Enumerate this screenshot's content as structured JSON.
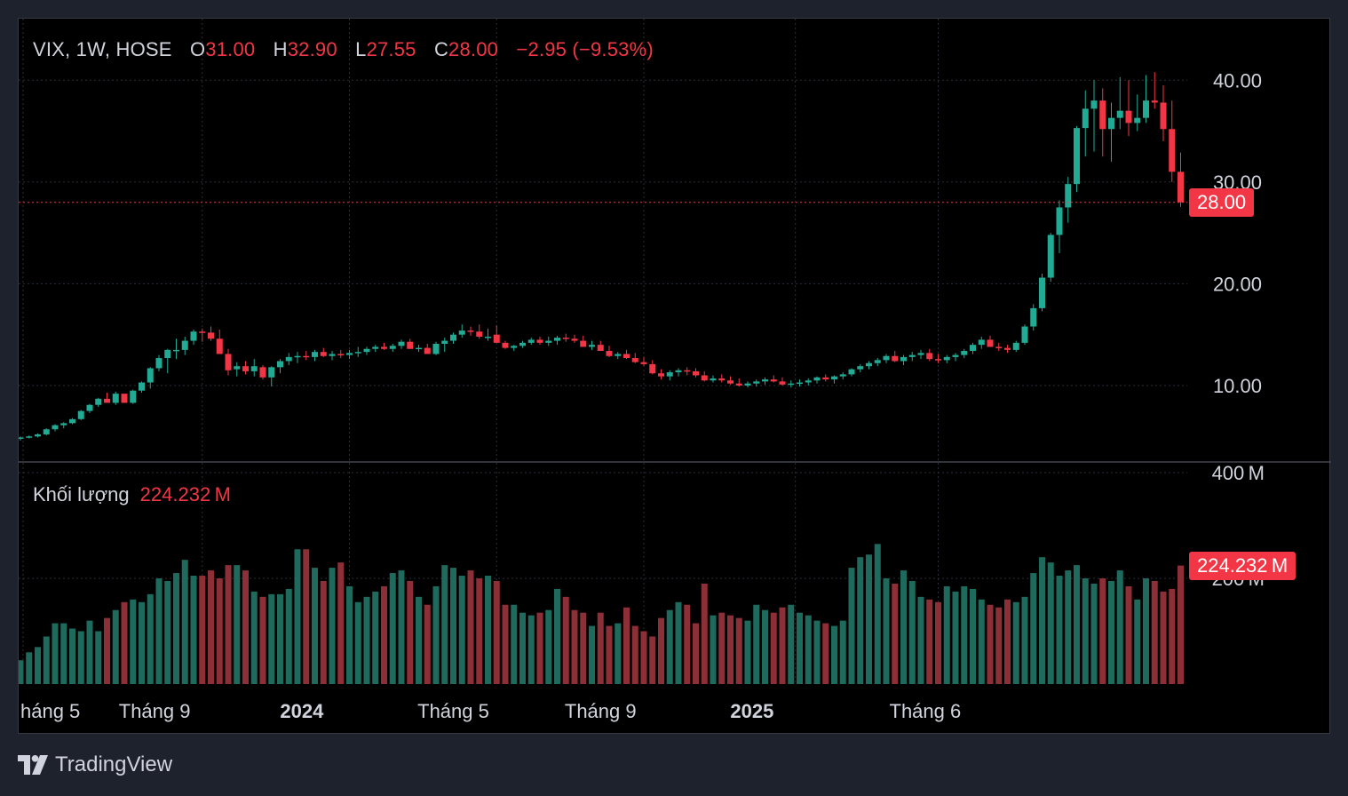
{
  "legend": {
    "symbol": "VIX, 1W, HOSE",
    "o_label": "O",
    "o_value": "31.00",
    "h_label": "H",
    "h_value": "32.90",
    "l_label": "L",
    "l_value": "27.55",
    "c_label": "C",
    "c_value": "28.00",
    "change": "−2.95 (−9.53%)"
  },
  "volume_legend": {
    "label": "Khối lượng",
    "value": "224.232 M"
  },
  "price_tag": "28.00",
  "volume_tag": "224.232 M",
  "brand": "TradingView",
  "colors": {
    "up": "#22ab94",
    "down": "#f23645",
    "vol_up": "#1e6a5c",
    "vol_down": "#8c2f36",
    "grid": "#2a2e39",
    "text": "#d1d4dc"
  },
  "chart_data": {
    "type": "candlestick",
    "symbol": "VIX",
    "interval": "1W",
    "exchange": "HOSE",
    "price_axis": {
      "ticks": [
        10,
        20,
        30,
        40
      ],
      "tick_labels": [
        "10.00",
        "20.00",
        "30.00",
        "40.00"
      ],
      "range": [
        3.8,
        45
      ]
    },
    "volume_axis": {
      "ticks": [
        200,
        400
      ],
      "tick_labels": [
        "200 M",
        "400 M"
      ],
      "range": [
        0,
        420
      ],
      "unit": "M"
    },
    "x_axis": {
      "labels": [
        {
          "text": "háng 5",
          "bold": false,
          "index": 0
        },
        {
          "text": "Tháng 9",
          "bold": false,
          "index": 15.5
        },
        {
          "text": "2024",
          "bold": true,
          "index": 32.5
        },
        {
          "text": "Tháng 5",
          "bold": false,
          "index": 50
        },
        {
          "text": "Tháng 9",
          "bold": false,
          "index": 67
        },
        {
          "text": "2025",
          "bold": true,
          "index": 84.5
        },
        {
          "text": "Tháng 6",
          "bold": false,
          "index": 104.5
        }
      ],
      "grid_indices": [
        0.3,
        21,
        38,
        55,
        72,
        89.5,
        106
      ]
    },
    "last_price": 28.0,
    "last_volume": 224.232,
    "candles": [
      [
        4.8,
        5.0,
        4.6,
        4.9,
        45
      ],
      [
        4.9,
        5.1,
        4.8,
        5.0,
        60
      ],
      [
        5.0,
        5.3,
        4.9,
        5.2,
        70
      ],
      [
        5.2,
        5.8,
        5.1,
        5.7,
        90
      ],
      [
        5.7,
        6.2,
        5.5,
        6.1,
        115
      ],
      [
        6.1,
        6.4,
        5.8,
        6.3,
        115
      ],
      [
        6.3,
        6.8,
        6.2,
        6.7,
        105
      ],
      [
        6.7,
        7.6,
        6.6,
        7.5,
        100
      ],
      [
        7.5,
        8.2,
        7.3,
        8.1,
        120
      ],
      [
        8.1,
        8.8,
        7.9,
        8.7,
        100
      ],
      [
        8.7,
        9.3,
        8.3,
        8.3,
        125
      ],
      [
        8.3,
        9.4,
        8.1,
        9.2,
        140
      ],
      [
        9.2,
        9.0,
        8.3,
        8.3,
        155
      ],
      [
        8.3,
        9.6,
        8.2,
        9.5,
        160
      ],
      [
        9.5,
        10.4,
        9.3,
        10.3,
        155
      ],
      [
        10.3,
        11.8,
        9.7,
        11.7,
        170
      ],
      [
        11.7,
        13.0,
        11.4,
        12.7,
        200
      ],
      [
        12.7,
        13.6,
        11.2,
        13.5,
        195
      ],
      [
        13.5,
        14.6,
        12.6,
        13.5,
        210
      ],
      [
        13.5,
        14.8,
        13.0,
        14.4,
        235
      ],
      [
        14.4,
        15.5,
        14.0,
        15.3,
        205
      ],
      [
        15.3,
        15.6,
        14.3,
        15.2,
        205
      ],
      [
        15.2,
        15.8,
        14.4,
        14.6,
        215
      ],
      [
        14.6,
        15.5,
        13.1,
        13.1,
        200
      ],
      [
        13.1,
        13.6,
        11.0,
        11.5,
        225
      ],
      [
        11.6,
        12.3,
        10.9,
        11.9,
        225
      ],
      [
        11.9,
        12.4,
        11.1,
        11.4,
        215
      ],
      [
        11.4,
        12.6,
        10.9,
        11.9,
        175
      ],
      [
        11.8,
        12.0,
        10.6,
        10.8,
        165
      ],
      [
        10.8,
        11.9,
        9.9,
        11.8,
        170
      ],
      [
        11.8,
        12.6,
        11.2,
        12.4,
        170
      ],
      [
        12.4,
        13.2,
        12.0,
        12.8,
        180
      ],
      [
        12.8,
        13.3,
        12.2,
        12.9,
        255
      ],
      [
        12.9,
        13.4,
        12.5,
        12.8,
        255
      ],
      [
        12.8,
        13.5,
        12.4,
        13.3,
        220
      ],
      [
        13.3,
        13.7,
        12.8,
        12.9,
        195
      ],
      [
        12.9,
        13.4,
        12.5,
        13.1,
        220
      ],
      [
        13.1,
        13.5,
        12.7,
        13.0,
        230
      ],
      [
        13.0,
        13.5,
        12.6,
        13.2,
        185
      ],
      [
        13.2,
        13.8,
        12.8,
        13.3,
        155
      ],
      [
        13.3,
        13.8,
        13.0,
        13.6,
        165
      ],
      [
        13.6,
        14.0,
        13.3,
        13.8,
        175
      ],
      [
        13.8,
        14.2,
        13.5,
        13.6,
        185
      ],
      [
        13.6,
        14.1,
        13.3,
        13.9,
        210
      ],
      [
        13.9,
        14.5,
        13.6,
        14.3,
        215
      ],
      [
        14.3,
        14.6,
        13.6,
        13.6,
        195
      ],
      [
        13.6,
        14.0,
        13.3,
        13.7,
        165
      ],
      [
        13.7,
        14.1,
        13.1,
        13.1,
        150
      ],
      [
        13.1,
        14.3,
        13.0,
        14.1,
        185
      ],
      [
        14.1,
        14.7,
        13.3,
        14.4,
        225
      ],
      [
        14.4,
        15.2,
        14.1,
        15.0,
        220
      ],
      [
        15.0,
        16.0,
        14.7,
        15.4,
        205
      ],
      [
        15.4,
        15.8,
        14.9,
        15.3,
        215
      ],
      [
        15.3,
        16.0,
        14.6,
        14.8,
        200
      ],
      [
        14.8,
        15.6,
        14.4,
        14.8,
        205
      ],
      [
        15.0,
        15.9,
        14.2,
        14.2,
        195
      ],
      [
        14.2,
        14.4,
        13.6,
        13.7,
        150
      ],
      [
        13.7,
        14.0,
        13.4,
        13.9,
        150
      ],
      [
        13.9,
        14.4,
        13.7,
        14.2,
        135
      ],
      [
        14.2,
        14.7,
        14.0,
        14.5,
        130
      ],
      [
        14.5,
        14.8,
        14.0,
        14.2,
        135
      ],
      [
        14.2,
        14.8,
        13.9,
        14.4,
        140
      ],
      [
        14.4,
        14.9,
        14.0,
        14.7,
        180
      ],
      [
        14.7,
        15.1,
        14.3,
        14.6,
        165
      ],
      [
        14.6,
        15.0,
        14.2,
        14.4,
        140
      ],
      [
        14.4,
        14.9,
        13.8,
        13.8,
        135
      ],
      [
        13.8,
        14.4,
        13.5,
        14.0,
        110
      ],
      [
        14.0,
        14.4,
        13.4,
        13.4,
        135
      ],
      [
        13.4,
        13.9,
        12.8,
        12.9,
        110
      ],
      [
        12.9,
        13.3,
        12.6,
        13.1,
        115
      ],
      [
        13.1,
        13.5,
        12.6,
        12.7,
        145
      ],
      [
        12.7,
        13.2,
        12.2,
        12.3,
        110
      ],
      [
        12.3,
        12.8,
        11.9,
        12.1,
        100
      ],
      [
        12.1,
        12.5,
        11.1,
        11.2,
        90
      ],
      [
        11.2,
        11.6,
        10.6,
        10.9,
        125
      ],
      [
        10.9,
        11.5,
        10.5,
        11.3,
        140
      ],
      [
        11.3,
        11.7,
        10.9,
        11.5,
        155
      ],
      [
        11.5,
        11.8,
        11.0,
        11.4,
        150
      ],
      [
        11.4,
        11.7,
        10.8,
        11.0,
        115
      ],
      [
        11.0,
        11.4,
        10.4,
        10.5,
        190
      ],
      [
        10.5,
        11.0,
        10.3,
        10.7,
        130
      ],
      [
        10.7,
        11.1,
        10.3,
        10.5,
        135
      ],
      [
        10.5,
        10.9,
        10.1,
        10.2,
        130
      ],
      [
        10.2,
        10.7,
        9.9,
        10.0,
        125
      ],
      [
        10.0,
        10.4,
        9.8,
        10.2,
        120
      ],
      [
        10.2,
        10.6,
        9.9,
        10.4,
        150
      ],
      [
        10.4,
        10.8,
        10.1,
        10.6,
        140
      ],
      [
        10.6,
        11.0,
        10.3,
        10.4,
        135
      ],
      [
        10.4,
        10.8,
        10.0,
        10.1,
        145
      ],
      [
        10.1,
        10.5,
        9.8,
        10.2,
        150
      ],
      [
        10.2,
        10.6,
        9.9,
        10.3,
        135
      ],
      [
        10.3,
        10.7,
        10.0,
        10.5,
        130
      ],
      [
        10.5,
        10.9,
        10.2,
        10.8,
        120
      ],
      [
        10.8,
        11.1,
        10.4,
        10.6,
        115
      ],
      [
        10.6,
        11.0,
        10.2,
        10.9,
        110
      ],
      [
        10.9,
        11.3,
        10.6,
        11.1,
        120
      ],
      [
        11.1,
        11.7,
        10.9,
        11.6,
        220
      ],
      [
        11.6,
        12.1,
        11.3,
        11.9,
        240
      ],
      [
        11.9,
        12.4,
        11.6,
        12.2,
        245
      ],
      [
        12.2,
        12.7,
        11.9,
        12.5,
        265
      ],
      [
        12.5,
        13.1,
        12.2,
        12.9,
        200
      ],
      [
        12.9,
        13.4,
        12.3,
        12.4,
        190
      ],
      [
        12.4,
        13.0,
        12.0,
        12.8,
        215
      ],
      [
        12.8,
        13.3,
        12.4,
        13.0,
        195
      ],
      [
        13.0,
        13.5,
        12.6,
        13.2,
        165
      ],
      [
        13.2,
        13.6,
        12.4,
        12.6,
        160
      ],
      [
        12.6,
        13.1,
        12.2,
        12.5,
        155
      ],
      [
        12.5,
        13.0,
        12.2,
        12.8,
        185
      ],
      [
        12.8,
        13.2,
        12.4,
        13.0,
        175
      ],
      [
        13.0,
        13.6,
        12.7,
        13.4,
        185
      ],
      [
        13.4,
        14.2,
        13.1,
        14.0,
        180
      ],
      [
        14.0,
        14.8,
        13.6,
        14.5,
        160
      ],
      [
        14.5,
        14.9,
        13.8,
        13.8,
        150
      ],
      [
        13.8,
        14.2,
        13.4,
        13.7,
        145
      ],
      [
        13.7,
        14.0,
        13.2,
        13.5,
        160
      ],
      [
        13.5,
        14.4,
        13.3,
        14.2,
        155
      ],
      [
        14.2,
        16.0,
        14.0,
        15.8,
        165
      ],
      [
        15.8,
        18.0,
        15.4,
        17.6,
        210
      ],
      [
        17.6,
        21.0,
        17.3,
        20.6,
        240
      ],
      [
        20.6,
        25.0,
        20.2,
        24.8,
        230
      ],
      [
        24.8,
        28.2,
        23.0,
        27.5,
        205
      ],
      [
        27.5,
        30.5,
        26.0,
        29.8,
        215
      ],
      [
        29.8,
        35.5,
        29.0,
        35.3,
        225
      ],
      [
        35.3,
        39.0,
        32.5,
        37.2,
        200
      ],
      [
        37.2,
        40.0,
        33.0,
        38.0,
        190
      ],
      [
        38.0,
        39.2,
        32.5,
        35.2,
        200
      ],
      [
        35.2,
        37.8,
        32.0,
        36.3,
        195
      ],
      [
        36.3,
        40.3,
        35.2,
        37.0,
        215
      ],
      [
        37.0,
        40.0,
        34.5,
        35.8,
        185
      ],
      [
        35.8,
        38.6,
        35.0,
        36.3,
        160
      ],
      [
        36.3,
        40.5,
        35.8,
        38.0,
        200
      ],
      [
        38.0,
        40.8,
        37.2,
        37.8,
        195
      ],
      [
        37.8,
        39.5,
        34.0,
        35.2,
        175
      ],
      [
        35.2,
        38.0,
        30.0,
        31.0,
        180
      ],
      [
        31.0,
        32.9,
        27.55,
        28.0,
        224.232
      ]
    ]
  }
}
